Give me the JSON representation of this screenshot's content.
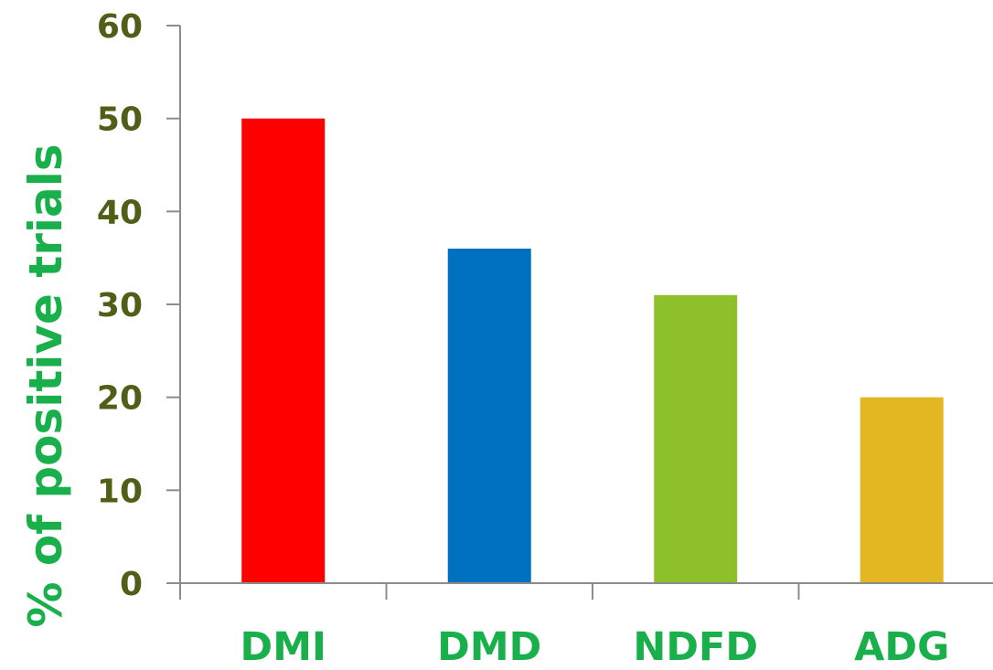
{
  "chart_data": {
    "type": "bar",
    "title": "",
    "xlabel": "",
    "ylabel": "% of positive trials",
    "categories": [
      "DMI",
      "DMD",
      "NDFD",
      "ADG"
    ],
    "values": [
      50,
      36,
      31,
      20
    ],
    "bar_colors": [
      "#ff0000",
      "#0070c0",
      "#8dc02a",
      "#e3b721"
    ],
    "ylim": [
      0,
      60
    ],
    "yticks": [
      0,
      10,
      20,
      30,
      40,
      50,
      60
    ],
    "grid": false,
    "legend": "none",
    "colors": {
      "tick_label": "#4f5f17",
      "category_label": "#19b04c",
      "axis_label": "#19b04c",
      "axis_line": "#8c8c8c"
    }
  }
}
